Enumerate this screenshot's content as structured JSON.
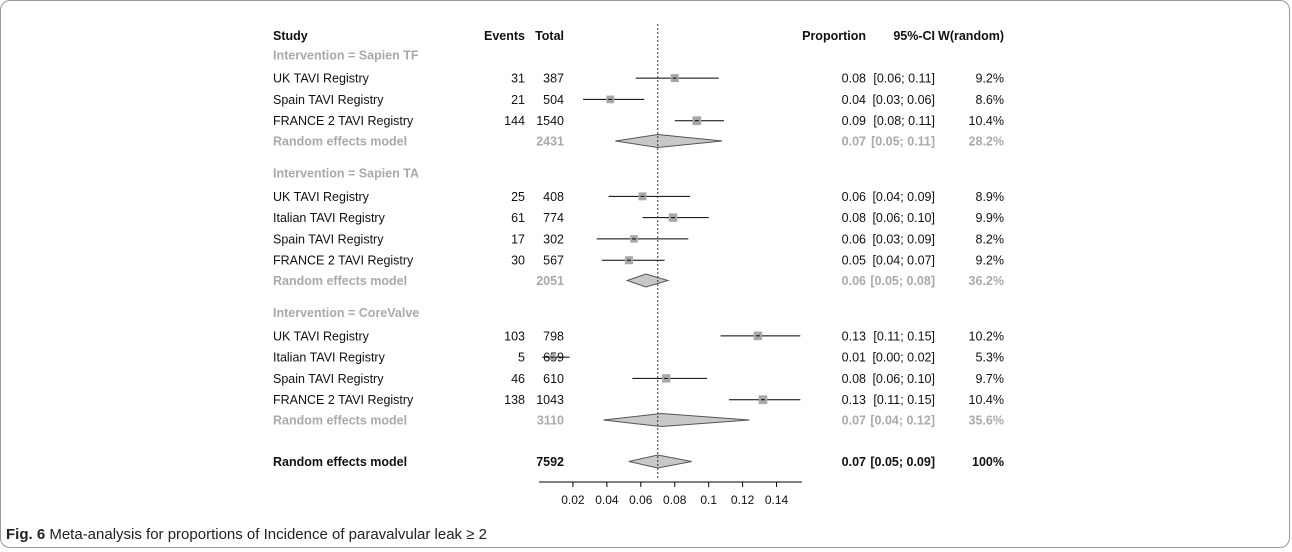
{
  "caption": {
    "label": "Fig. 6",
    "text": "Meta-analysis for proportions of Incidence of paravalvular leak ≥ 2"
  },
  "colors": {
    "text": "#111111",
    "muted": "#aaaaaa",
    "diamond_fill": "#c8c8c8",
    "square_fill": "#a8a8a8",
    "dotted_line": "#333333"
  },
  "chart_data": {
    "type": "forest",
    "headers": {
      "study": "Study",
      "events": "Events",
      "total": "Total",
      "proportion": "Proportion",
      "ci": "95%-CI",
      "weight": "W(random)"
    },
    "overall_estimate_line": 0.07,
    "xlim": [
      0.0,
      0.155
    ],
    "x_ticks": [
      0.02,
      0.04,
      0.06,
      0.08,
      0.1,
      0.12,
      0.14
    ],
    "x_tick_labels": [
      "0.02",
      "0.04",
      "0.06",
      "0.08",
      "0.1",
      "0.12",
      "0.14"
    ],
    "groups": [
      {
        "title": "Intervention = Sapien TF",
        "studies": [
          {
            "name": "UK TAVI Registry",
            "events": "31",
            "total": "387",
            "prop": 0.08,
            "lo": 0.057,
            "hi": 0.106,
            "prop_text": "0.08",
            "ci_text": "[0.06; 0.11]",
            "weight": "9.2%"
          },
          {
            "name": "Spain TAVI Registry",
            "events": "21",
            "total": "504",
            "prop": 0.042,
            "lo": 0.026,
            "hi": 0.062,
            "prop_text": "0.04",
            "ci_text": "[0.03; 0.06]",
            "weight": "8.6%"
          },
          {
            "name": "FRANCE 2 TAVI Registry",
            "events": "144",
            "total": "1540",
            "prop": 0.093,
            "lo": 0.08,
            "hi": 0.109,
            "prop_text": "0.09",
            "ci_text": "[0.08; 0.11]",
            "weight": "10.4%"
          }
        ],
        "summary": {
          "name": "Random effects model",
          "total": "2431",
          "prop": 0.07,
          "lo": 0.045,
          "hi": 0.108,
          "prop_text": "0.07",
          "ci_text": "[0.05; 0.11]",
          "weight": "28.2%"
        }
      },
      {
        "title": "Intervention = Sapien TA",
        "studies": [
          {
            "name": "UK TAVI Registry",
            "events": "25",
            "total": "408",
            "prop": 0.061,
            "lo": 0.041,
            "hi": 0.089,
            "prop_text": "0.06",
            "ci_text": "[0.04; 0.09]",
            "weight": "8.9%"
          },
          {
            "name": "Italian TAVI Registry",
            "events": "61",
            "total": "774",
            "prop": 0.079,
            "lo": 0.061,
            "hi": 0.1,
            "prop_text": "0.08",
            "ci_text": "[0.06; 0.10]",
            "weight": "9.9%"
          },
          {
            "name": "Spain TAVI Registry",
            "events": "17",
            "total": "302",
            "prop": 0.056,
            "lo": 0.034,
            "hi": 0.088,
            "prop_text": "0.06",
            "ci_text": "[0.03; 0.09]",
            "weight": "8.2%"
          },
          {
            "name": "FRANCE 2 TAVI Registry",
            "events": "30",
            "total": "567",
            "prop": 0.053,
            "lo": 0.037,
            "hi": 0.074,
            "prop_text": "0.05",
            "ci_text": "[0.04; 0.07]",
            "weight": "9.2%"
          }
        ],
        "summary": {
          "name": "Random effects model",
          "total": "2051",
          "prop": 0.063,
          "lo": 0.052,
          "hi": 0.076,
          "prop_text": "0.06",
          "ci_text": "[0.05; 0.08]",
          "weight": "36.2%"
        }
      },
      {
        "title": "Intervention = CoreValve",
        "studies": [
          {
            "name": "UK TAVI Registry",
            "events": "103",
            "total": "798",
            "prop": 0.129,
            "lo": 0.107,
            "hi": 0.154,
            "prop_text": "0.13",
            "ci_text": "[0.11; 0.15]",
            "weight": "10.2%"
          },
          {
            "name": "Italian TAVI Registry",
            "events": "5",
            "total": "659",
            "prop": 0.008,
            "lo": 0.002,
            "hi": 0.018,
            "prop_text": "0.01",
            "ci_text": "[0.00; 0.02]",
            "weight": "5.3%"
          },
          {
            "name": "Spain TAVI Registry",
            "events": "46",
            "total": "610",
            "prop": 0.075,
            "lo": 0.055,
            "hi": 0.099,
            "prop_text": "0.08",
            "ci_text": "[0.06; 0.10]",
            "weight": "9.7%"
          },
          {
            "name": "FRANCE 2 TAVI Registry",
            "events": "138",
            "total": "1043",
            "prop": 0.132,
            "lo": 0.112,
            "hi": 0.154,
            "prop_text": "0.13",
            "ci_text": "[0.11; 0.15]",
            "weight": "10.4%"
          }
        ],
        "summary": {
          "name": "Random effects model",
          "total": "3110",
          "prop": 0.072,
          "lo": 0.038,
          "hi": 0.124,
          "prop_text": "0.07",
          "ci_text": "[0.04; 0.12]",
          "weight": "35.6%"
        }
      }
    ],
    "overall": {
      "name": "Random effects model",
      "total": "7592",
      "prop": 0.07,
      "lo": 0.053,
      "hi": 0.09,
      "prop_text": "0.07",
      "ci_text": "[0.05; 0.09]",
      "weight": "100%"
    }
  }
}
